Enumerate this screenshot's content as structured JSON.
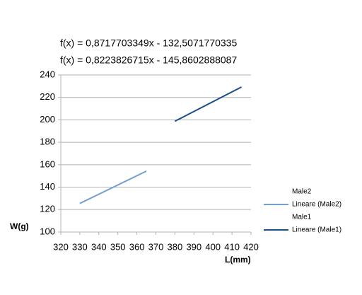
{
  "chart_data": {
    "type": "line",
    "annotations": [
      {
        "text": "f(x) = 0,8717703349x - 132,5071770335",
        "color": "#1c4f8a"
      },
      {
        "text": "f(x) = 0,8223826715x - 145,8602888087",
        "color": "#729fcf"
      }
    ],
    "x_label": "L(mm)",
    "y_label": "W(g)",
    "series": [
      {
        "name": "Male2",
        "trend_name": "Lineare (Male2)",
        "color": "#729fcf",
        "x": [
          330,
          365
        ],
        "values": [
          125.5,
          154.3
        ]
      },
      {
        "name": "Male1",
        "trend_name": "Lineare (Male1)",
        "color": "#1c4f8a",
        "x": [
          380,
          415
        ],
        "values": [
          198.8,
          229.3
        ]
      }
    ],
    "xlim": [
      320,
      420
    ],
    "xticks": [
      320,
      330,
      340,
      350,
      360,
      370,
      380,
      390,
      400,
      410,
      420
    ],
    "ylim": [
      100,
      240
    ],
    "yticks": [
      100,
      120,
      140,
      160,
      180,
      200,
      220,
      240
    ],
    "grid": true,
    "legend": "right"
  }
}
